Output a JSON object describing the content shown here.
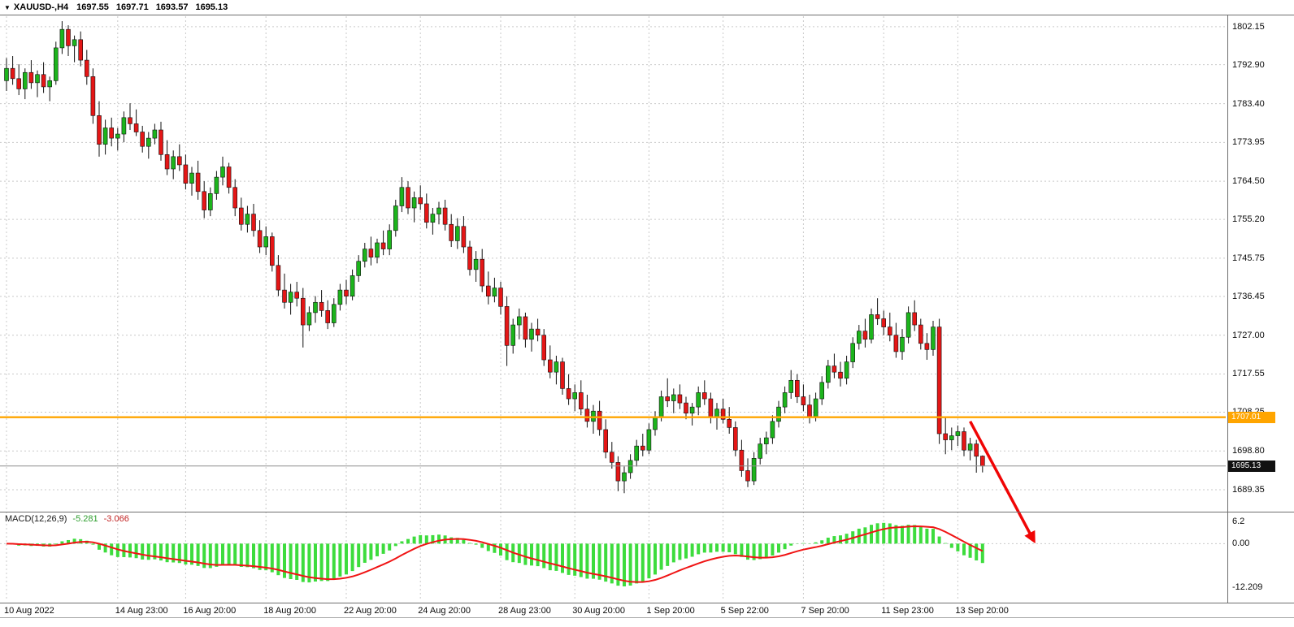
{
  "header": {
    "dropdown_icon": "▼",
    "symbol": "XAUUSD-,H4",
    "open": "1697.55",
    "high": "1697.71",
    "low": "1693.57",
    "close": "1695.13"
  },
  "indicator_label": {
    "name": "MACD(12,26,9)",
    "macd_value": "-5.281",
    "signal_value": "-3.066"
  },
  "colors": {
    "bull": "#1cb41c",
    "bear": "#e41616",
    "wick": "#111111",
    "grid": "#c9c9c9",
    "hline": "#ffa500",
    "bid_line": "#8f8f8f",
    "macd_hist": "#3ddc3d",
    "macd_signal": "#f01414",
    "arrow": "#f00505",
    "tag_hline_bg": "#ffa500",
    "tag_current_bg": "#111111"
  },
  "chart_data": [
    {
      "type": "candlestick",
      "title": "XAUUSD- H4",
      "ylim": [
        1684.4,
        1804.7
      ],
      "y_ticks": [
        1802.15,
        1792.9,
        1783.4,
        1773.95,
        1764.5,
        1755.2,
        1745.75,
        1736.45,
        1727.0,
        1717.55,
        1708.25,
        1698.8,
        1689.35
      ],
      "x_labels": [
        {
          "text": "10 Aug 2022",
          "bar": 0
        },
        {
          "text": "14 Aug 23:00",
          "bar": 18
        },
        {
          "text": "16 Aug 20:00",
          "bar": 29
        },
        {
          "text": "18 Aug 20:00",
          "bar": 42
        },
        {
          "text": "22 Aug 20:00",
          "bar": 55
        },
        {
          "text": "24 Aug 20:00",
          "bar": 67
        },
        {
          "text": "28 Aug 23:00",
          "bar": 80
        },
        {
          "text": "30 Aug 20:00",
          "bar": 92
        },
        {
          "text": "1 Sep 20:00",
          "bar": 104
        },
        {
          "text": "5 Sep 22:00",
          "bar": 116
        },
        {
          "text": "7 Sep 20:00",
          "bar": 129
        },
        {
          "text": "11 Sep 23:00",
          "bar": 142
        },
        {
          "text": "13 Sep 20:00",
          "bar": 154
        }
      ],
      "hline": {
        "value": 1707.01,
        "label": "1707.01"
      },
      "current_price": {
        "value": 1695.13,
        "label": "1695.13"
      },
      "annotations": [
        {
          "type": "arrow",
          "direction": "down-right",
          "from": {
            "bar": 156,
            "price": 1706.0
          },
          "to": {
            "bar": 166,
            "macd_value": 1.8
          }
        }
      ],
      "candles": [
        [
          1789.0,
          1794.5,
          1786.5,
          1792.0
        ],
        [
          1792.0,
          1795.0,
          1788.0,
          1789.5
        ],
        [
          1789.5,
          1793.0,
          1785.5,
          1787.0
        ],
        [
          1787.0,
          1792.0,
          1784.5,
          1791.0
        ],
        [
          1791.0,
          1794.0,
          1787.0,
          1788.5
        ],
        [
          1788.5,
          1791.5,
          1785.0,
          1790.5
        ],
        [
          1790.5,
          1793.5,
          1786.0,
          1787.5
        ],
        [
          1787.5,
          1790.0,
          1784.0,
          1789.0
        ],
        [
          1789.0,
          1798.5,
          1788.0,
          1797.0
        ],
        [
          1797.0,
          1803.5,
          1795.5,
          1801.5
        ],
        [
          1801.5,
          1802.5,
          1795.0,
          1797.5
        ],
        [
          1797.5,
          1800.0,
          1793.5,
          1799.0
        ],
        [
          1799.0,
          1801.0,
          1792.5,
          1794.0
        ],
        [
          1794.0,
          1796.5,
          1788.0,
          1790.0
        ],
        [
          1790.0,
          1792.0,
          1778.5,
          1780.5
        ],
        [
          1780.5,
          1784.0,
          1770.5,
          1773.5
        ],
        [
          1773.5,
          1779.5,
          1771.0,
          1777.5
        ],
        [
          1777.5,
          1780.0,
          1773.0,
          1775.0
        ],
        [
          1775.0,
          1777.5,
          1772.0,
          1776.0
        ],
        [
          1776.0,
          1781.5,
          1774.0,
          1780.0
        ],
        [
          1780.0,
          1783.5,
          1777.0,
          1778.5
        ],
        [
          1778.5,
          1782.0,
          1775.5,
          1776.5
        ],
        [
          1776.5,
          1778.0,
          1771.5,
          1773.0
        ],
        [
          1773.0,
          1776.5,
          1770.0,
          1775.0
        ],
        [
          1775.0,
          1778.5,
          1773.5,
          1777.0
        ],
        [
          1777.0,
          1779.0,
          1769.5,
          1771.0
        ],
        [
          1771.0,
          1774.5,
          1766.0,
          1767.5
        ],
        [
          1767.5,
          1772.0,
          1765.0,
          1770.5
        ],
        [
          1770.5,
          1773.5,
          1767.0,
          1768.5
        ],
        [
          1768.5,
          1771.0,
          1762.5,
          1764.0
        ],
        [
          1764.0,
          1768.0,
          1761.0,
          1766.5
        ],
        [
          1766.5,
          1769.5,
          1760.0,
          1762.0
        ],
        [
          1762.0,
          1764.5,
          1755.5,
          1757.5
        ],
        [
          1757.5,
          1763.0,
          1756.0,
          1761.5
        ],
        [
          1761.5,
          1767.0,
          1760.0,
          1765.5
        ],
        [
          1765.5,
          1770.5,
          1763.5,
          1768.0
        ],
        [
          1768.0,
          1769.0,
          1761.5,
          1763.0
        ],
        [
          1763.0,
          1765.0,
          1756.0,
          1758.0
        ],
        [
          1758.0,
          1760.5,
          1752.5,
          1754.0
        ],
        [
          1754.0,
          1758.5,
          1752.0,
          1756.5
        ],
        [
          1756.5,
          1759.0,
          1751.0,
          1752.5
        ],
        [
          1752.5,
          1755.0,
          1747.0,
          1748.5
        ],
        [
          1748.5,
          1753.5,
          1746.5,
          1751.0
        ],
        [
          1751.0,
          1752.0,
          1742.5,
          1744.0
        ],
        [
          1744.0,
          1746.5,
          1736.5,
          1738.0
        ],
        [
          1738.0,
          1742.0,
          1733.5,
          1735.0
        ],
        [
          1735.0,
          1739.5,
          1732.0,
          1737.5
        ],
        [
          1737.5,
          1740.0,
          1734.0,
          1736.0
        ],
        [
          1736.0,
          1738.5,
          1724.0,
          1729.5
        ],
        [
          1729.5,
          1734.0,
          1728.0,
          1732.5
        ],
        [
          1732.5,
          1736.5,
          1730.0,
          1735.0
        ],
        [
          1735.0,
          1738.0,
          1731.5,
          1733.0
        ],
        [
          1733.0,
          1735.5,
          1728.5,
          1730.0
        ],
        [
          1730.0,
          1736.0,
          1729.0,
          1734.5
        ],
        [
          1734.5,
          1739.5,
          1733.0,
          1738.0
        ],
        [
          1738.0,
          1740.5,
          1734.5,
          1736.5
        ],
        [
          1736.5,
          1743.0,
          1735.5,
          1741.5
        ],
        [
          1741.5,
          1746.5,
          1740.0,
          1745.0
        ],
        [
          1745.0,
          1749.5,
          1743.5,
          1748.0
        ],
        [
          1748.0,
          1751.0,
          1744.0,
          1746.0
        ],
        [
          1746.0,
          1750.5,
          1744.5,
          1749.5
        ],
        [
          1749.5,
          1752.5,
          1746.5,
          1748.0
        ],
        [
          1748.0,
          1754.0,
          1746.5,
          1752.5
        ],
        [
          1752.5,
          1760.0,
          1751.0,
          1758.5
        ],
        [
          1758.5,
          1765.5,
          1757.0,
          1763.0
        ],
        [
          1763.0,
          1764.5,
          1756.5,
          1758.0
        ],
        [
          1758.0,
          1762.0,
          1754.5,
          1760.5
        ],
        [
          1760.5,
          1763.5,
          1757.5,
          1759.0
        ],
        [
          1759.0,
          1761.5,
          1753.0,
          1754.5
        ],
        [
          1754.5,
          1758.0,
          1751.5,
          1756.5
        ],
        [
          1756.5,
          1759.5,
          1754.0,
          1758.0
        ],
        [
          1758.0,
          1760.0,
          1752.5,
          1754.0
        ],
        [
          1754.0,
          1756.5,
          1748.5,
          1750.0
        ],
        [
          1750.0,
          1755.5,
          1748.0,
          1753.5
        ],
        [
          1753.5,
          1756.0,
          1747.0,
          1748.5
        ],
        [
          1748.5,
          1750.0,
          1741.5,
          1743.0
        ],
        [
          1743.0,
          1747.5,
          1740.0,
          1745.5
        ],
        [
          1745.5,
          1748.0,
          1737.5,
          1739.0
        ],
        [
          1739.0,
          1742.5,
          1734.5,
          1736.5
        ],
        [
          1736.5,
          1741.0,
          1735.0,
          1738.5
        ],
        [
          1738.5,
          1740.0,
          1732.0,
          1734.0
        ],
        [
          1734.0,
          1736.5,
          1719.5,
          1724.5
        ],
        [
          1724.5,
          1731.0,
          1722.5,
          1729.5
        ],
        [
          1729.5,
          1733.5,
          1726.0,
          1731.5
        ],
        [
          1731.5,
          1732.5,
          1724.0,
          1726.0
        ],
        [
          1726.0,
          1730.0,
          1723.0,
          1728.5
        ],
        [
          1728.5,
          1731.0,
          1725.5,
          1727.0
        ],
        [
          1727.0,
          1728.5,
          1719.5,
          1721.0
        ],
        [
          1721.0,
          1724.5,
          1716.5,
          1718.0
        ],
        [
          1718.0,
          1722.0,
          1715.0,
          1720.5
        ],
        [
          1720.5,
          1721.5,
          1712.5,
          1714.0
        ],
        [
          1714.0,
          1717.5,
          1710.0,
          1711.5
        ],
        [
          1711.5,
          1715.0,
          1708.5,
          1713.0
        ],
        [
          1713.0,
          1716.0,
          1707.5,
          1709.0
        ],
        [
          1709.0,
          1712.5,
          1704.5,
          1706.0
        ],
        [
          1706.0,
          1710.0,
          1703.0,
          1708.5
        ],
        [
          1708.5,
          1711.0,
          1702.5,
          1704.0
        ],
        [
          1704.0,
          1706.5,
          1697.0,
          1698.5
        ],
        [
          1698.5,
          1701.0,
          1694.5,
          1696.0
        ],
        [
          1696.0,
          1697.5,
          1689.0,
          1691.5
        ],
        [
          1691.5,
          1695.0,
          1688.5,
          1693.5
        ],
        [
          1693.5,
          1698.0,
          1692.0,
          1696.5
        ],
        [
          1696.5,
          1701.5,
          1695.0,
          1700.0
        ],
        [
          1700.0,
          1703.0,
          1697.5,
          1699.0
        ],
        [
          1699.0,
          1705.5,
          1698.0,
          1704.0
        ],
        [
          1704.0,
          1708.5,
          1702.5,
          1707.0
        ],
        [
          1707.0,
          1713.5,
          1706.0,
          1712.0
        ],
        [
          1712.0,
          1716.5,
          1709.5,
          1711.0
        ],
        [
          1711.0,
          1714.0,
          1708.0,
          1712.5
        ],
        [
          1712.5,
          1715.0,
          1709.0,
          1710.5
        ],
        [
          1710.5,
          1712.0,
          1706.5,
          1708.0
        ],
        [
          1708.0,
          1710.5,
          1705.0,
          1709.5
        ],
        [
          1709.5,
          1714.5,
          1707.5,
          1713.0
        ],
        [
          1713.0,
          1716.0,
          1710.0,
          1711.5
        ],
        [
          1711.5,
          1713.0,
          1705.5,
          1707.0
        ],
        [
          1707.0,
          1710.5,
          1704.0,
          1709.0
        ],
        [
          1709.0,
          1711.5,
          1705.5,
          1706.5
        ],
        [
          1706.5,
          1709.5,
          1703.0,
          1704.5
        ],
        [
          1704.5,
          1706.0,
          1697.5,
          1699.0
        ],
        [
          1699.0,
          1701.5,
          1692.5,
          1694.0
        ],
        [
          1694.0,
          1697.0,
          1690.0,
          1691.5
        ],
        [
          1691.5,
          1698.5,
          1690.5,
          1697.0
        ],
        [
          1697.0,
          1702.0,
          1695.5,
          1700.5
        ],
        [
          1700.5,
          1703.5,
          1698.0,
          1702.0
        ],
        [
          1702.0,
          1707.5,
          1700.5,
          1706.0
        ],
        [
          1706.0,
          1711.0,
          1704.5,
          1709.5
        ],
        [
          1709.5,
          1714.5,
          1708.0,
          1713.0
        ],
        [
          1713.0,
          1718.5,
          1711.5,
          1716.0
        ],
        [
          1716.0,
          1717.5,
          1710.5,
          1712.0
        ],
        [
          1712.0,
          1715.0,
          1708.5,
          1710.0
        ],
        [
          1710.0,
          1712.5,
          1705.5,
          1707.0
        ],
        [
          1707.0,
          1713.0,
          1706.0,
          1711.5
        ],
        [
          1711.5,
          1717.0,
          1710.0,
          1715.5
        ],
        [
          1715.5,
          1721.0,
          1714.0,
          1719.5
        ],
        [
          1719.5,
          1722.5,
          1716.5,
          1718.0
        ],
        [
          1718.0,
          1720.5,
          1714.5,
          1716.5
        ],
        [
          1716.5,
          1722.0,
          1715.0,
          1720.5
        ],
        [
          1720.5,
          1726.5,
          1719.0,
          1725.0
        ],
        [
          1725.0,
          1729.5,
          1723.5,
          1728.0
        ],
        [
          1728.0,
          1731.0,
          1724.0,
          1726.0
        ],
        [
          1726.0,
          1733.5,
          1725.0,
          1732.0
        ],
        [
          1732.0,
          1736.0,
          1729.5,
          1731.0
        ],
        [
          1731.0,
          1733.0,
          1727.0,
          1729.0
        ],
        [
          1729.0,
          1732.5,
          1725.5,
          1727.0
        ],
        [
          1727.0,
          1730.0,
          1721.5,
          1723.0
        ],
        [
          1723.0,
          1728.5,
          1721.0,
          1726.5
        ],
        [
          1726.5,
          1734.0,
          1725.0,
          1732.5
        ],
        [
          1732.5,
          1735.5,
          1728.0,
          1729.5
        ],
        [
          1729.5,
          1731.0,
          1723.5,
          1725.0
        ],
        [
          1725.0,
          1727.5,
          1721.0,
          1723.5
        ],
        [
          1723.5,
          1730.5,
          1722.0,
          1729.0
        ],
        [
          1729.0,
          1731.0,
          1700.5,
          1703.0
        ],
        [
          1703.0,
          1707.0,
          1698.0,
          1701.5
        ],
        [
          1701.5,
          1704.5,
          1699.0,
          1702.5
        ],
        [
          1702.5,
          1705.0,
          1700.0,
          1703.5
        ],
        [
          1703.5,
          1704.5,
          1697.5,
          1699.0
        ],
        [
          1699.0,
          1702.0,
          1696.5,
          1700.5
        ],
        [
          1700.5,
          1701.5,
          1693.5,
          1697.5
        ],
        [
          1697.55,
          1697.71,
          1693.57,
          1695.13
        ]
      ]
    },
    {
      "type": "macd",
      "name": "MACD",
      "params": [
        12,
        26,
        9
      ],
      "note": "histogram = EMA12 - EMA26 of candle closes (green bars); signal = EMA9 of MACD (red line); series derived from candles above",
      "ylim": [
        -16,
        8
      ],
      "y_ticks": [
        "6.2",
        "0.00",
        "-12.209"
      ],
      "current": {
        "macd": -5.281,
        "signal": -3.066
      }
    }
  ]
}
